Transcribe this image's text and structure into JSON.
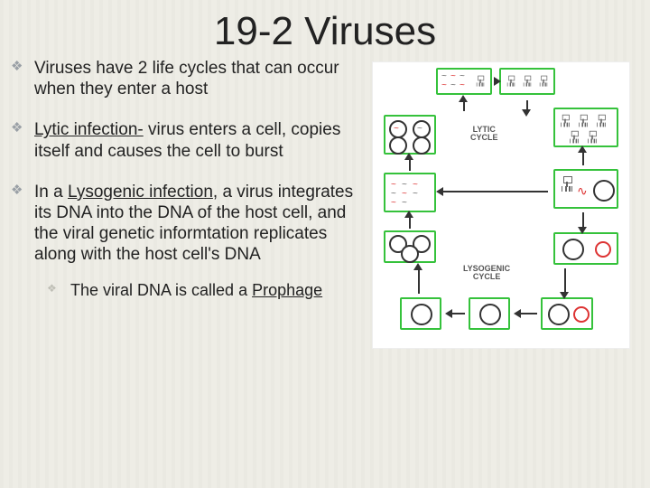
{
  "title": "19-2 Viruses",
  "bullets": {
    "b1": "Viruses have 2 life cycles that can occur when they enter a host",
    "b2_pre": "Lytic infection-",
    "b2_post": " virus enters a cell, copies itself and causes the cell to burst",
    "b3_pre": "In a ",
    "b3_u": "Lysogenic infection",
    "b3_post": ", a virus integrates its DNA into the DNA of the host cell, and the viral genetic informtation replicates along with the host cell's DNA",
    "sub_pre": "The viral DNA is called a ",
    "sub_u": "Prophage"
  },
  "diagram": {
    "label_lytic": "LYTIC\nCYCLE",
    "label_lyso": "LYSOGENIC\nCYCLE",
    "colors": {
      "box_border": "#35c23b",
      "cell_border": "#333333",
      "arrow": "#333333",
      "red": "#d33",
      "bg": "#ffffff"
    }
  }
}
